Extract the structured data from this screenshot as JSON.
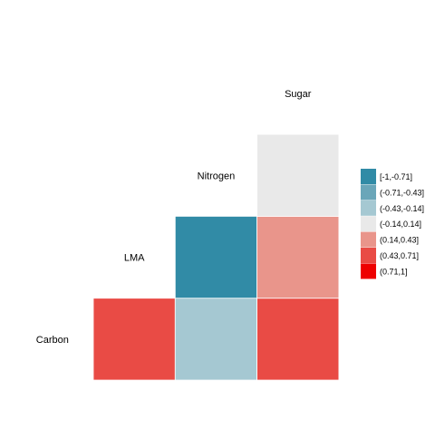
{
  "chart_data": {
    "type": "heatmap",
    "title": "",
    "variables": [
      "Carbon",
      "LMA",
      "Nitrogen",
      "Sugar"
    ],
    "cells": [
      {
        "row": "LMA",
        "col": "Carbon",
        "bin": "(0.43,0.71]"
      },
      {
        "row": "Nitrogen",
        "col": "Carbon",
        "bin": "(-0.43,-0.14]"
      },
      {
        "row": "Nitrogen",
        "col": "LMA",
        "bin": "[-1,-0.71]"
      },
      {
        "row": "Sugar",
        "col": "Carbon",
        "bin": "(0.43,0.71]"
      },
      {
        "row": "Sugar",
        "col": "LMA",
        "bin": "(0.14,0.43]"
      },
      {
        "row": "Sugar",
        "col": "Nitrogen",
        "bin": "(-0.14,0.14]"
      }
    ],
    "legend": {
      "position": "right",
      "entries": [
        {
          "label": "[-1,-0.71]",
          "color": "#318BA6"
        },
        {
          "label": "(-0.71,-0.43]",
          "color": "#6AA6B9"
        },
        {
          "label": "(-0.43,-0.14]",
          "color": "#A5C8D2"
        },
        {
          "label": "(-0.14,0.14]",
          "color": "#E9E9E9"
        },
        {
          "label": "(0.14,0.43]",
          "color": "#E9958B"
        },
        {
          "label": "(0.43,0.71]",
          "color": "#E94B45"
        },
        {
          "label": "(0.71,1]",
          "color": "#EE0000"
        }
      ]
    },
    "grid": false
  }
}
